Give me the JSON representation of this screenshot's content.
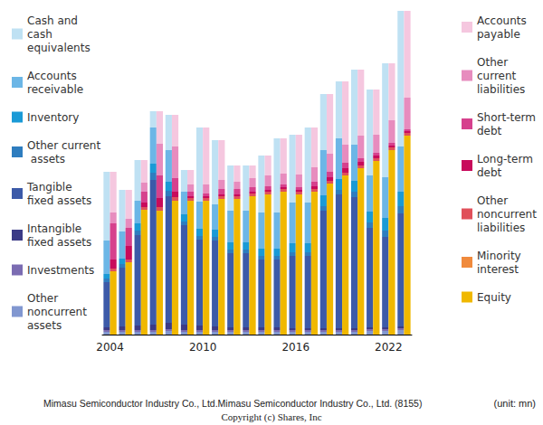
{
  "chart_data": [
    {
      "type": "bar",
      "title": "Mimasu Semiconductor Industry Co., Ltd.Mimasu Semiconductor Industry Co., Ltd. (8155)",
      "annotations": [
        "(unit: mn)",
        "Copyright (c) Shares, Inc"
      ],
      "stacked": true,
      "legend": "left",
      "grid": false,
      "tick_labels": "x",
      "categories": [
        "2004",
        null,
        null,
        null,
        null,
        null,
        "2010",
        null,
        null,
        null,
        null,
        null,
        "2016",
        null,
        null,
        null,
        null,
        null,
        "2022",
        null
      ],
      "ylim": [
        0,
        108000
      ],
      "series": [
        {
          "name": "Cash and cash equivalents",
          "color": "#bfe1f3",
          "values": [
            22800,
            13800,
            13500,
            5400,
            11700,
            7200,
            24600,
            21300,
            15000,
            15000,
            18900,
            24600,
            22500,
            24900,
            18600,
            18900,
            24900,
            28500,
            37800,
            45000
          ]
        },
        {
          "name": "Accounts receivable",
          "color": "#6cb6e6",
          "values": [
            11100,
            9000,
            7500,
            12000,
            10500,
            7500,
            9000,
            8400,
            10500,
            10500,
            12000,
            12000,
            13500,
            13500,
            15000,
            13500,
            12000,
            12000,
            13500,
            15000
          ]
        },
        {
          "name": "Inventory",
          "color": "#1a9ad6",
          "values": [
            1500,
            1800,
            2400,
            3000,
            3000,
            2400,
            2400,
            2400,
            2400,
            2400,
            2400,
            2400,
            3000,
            3000,
            3600,
            3600,
            3600,
            3600,
            4200,
            4800
          ]
        },
        {
          "name": "Other current assets",
          "color": "#2e7dbf",
          "values": [
            1200,
            1200,
            1500,
            2400,
            1800,
            1200,
            1200,
            1200,
            1200,
            1200,
            1200,
            1200,
            1200,
            1200,
            1500,
            1500,
            1800,
            1800,
            2100,
            2400
          ]
        },
        {
          "name": "Tangible fixed assets",
          "color": "#3c5aa8",
          "values": [
            15000,
            19500,
            30000,
            48000,
            42000,
            33000,
            28500,
            28500,
            24600,
            24600,
            22500,
            22500,
            24000,
            24000,
            39000,
            44400,
            43500,
            33000,
            30000,
            37500
          ]
        },
        {
          "name": "Intangible fixed assets",
          "color": "#3b3a86",
          "values": [
            900,
            1200,
            1500,
            1800,
            2100,
            1800,
            1500,
            1200,
            900,
            900,
            900,
            900,
            600,
            600,
            600,
            600,
            600,
            600,
            600,
            600
          ]
        },
        {
          "name": "Investments",
          "color": "#7b6cb2",
          "values": [
            600,
            600,
            600,
            600,
            600,
            600,
            600,
            600,
            600,
            600,
            600,
            600,
            600,
            600,
            600,
            600,
            600,
            600,
            600,
            600
          ]
        },
        {
          "name": "Other noncurrent assets",
          "color": "#8197d0",
          "values": [
            900,
            900,
            900,
            900,
            1200,
            900,
            900,
            900,
            900,
            900,
            900,
            900,
            900,
            900,
            900,
            900,
            900,
            1200,
            1200,
            1500
          ]
        }
      ]
    },
    {
      "type": "bar",
      "stacked": true,
      "legend": "right",
      "grid": false,
      "tick_labels": "x",
      "categories": [
        "2004",
        null,
        null,
        null,
        null,
        null,
        "2010",
        null,
        null,
        null,
        null,
        null,
        "2016",
        null,
        null,
        null,
        null,
        null,
        "2022",
        null
      ],
      "ylim": [
        0,
        108000
      ],
      "series": [
        {
          "name": "Accounts payable",
          "color": "#f5c7df",
          "values": [
            13500,
            9600,
            7500,
            10800,
            10500,
            4800,
            18900,
            13200,
            5400,
            4200,
            6600,
            11700,
            13200,
            13200,
            19800,
            21000,
            21900,
            15000,
            18900,
            28800
          ]
        },
        {
          "name": "Other current liabilities",
          "color": "#e78cbe",
          "values": [
            3600,
            3000,
            3000,
            10500,
            10500,
            2400,
            3000,
            3000,
            2400,
            3000,
            3600,
            3600,
            4200,
            4800,
            6000,
            6000,
            7500,
            6000,
            7500,
            10500
          ]
        },
        {
          "name": "Short-term debt",
          "color": "#d6418d",
          "values": [
            12000,
            6000,
            3600,
            7500,
            4500,
            1500,
            900,
            1800,
            1800,
            1500,
            1200,
            900,
            900,
            1500,
            1800,
            1800,
            1200,
            900,
            900,
            600
          ]
        },
        {
          "name": "Long-term debt",
          "color": "#c80a5b",
          "values": [
            3000,
            4500,
            1500,
            3000,
            1800,
            600,
            600,
            600,
            600,
            600,
            600,
            600,
            600,
            900,
            1200,
            1500,
            1200,
            900,
            600,
            600
          ]
        },
        {
          "name": "Other noncurrent liabilities",
          "color": "#e0505a",
          "values": [
            900,
            900,
            900,
            1200,
            1200,
            900,
            900,
            900,
            900,
            900,
            900,
            900,
            900,
            900,
            900,
            900,
            900,
            900,
            900,
            900
          ]
        },
        {
          "name": "Minority interest",
          "color": "#f08a3c",
          "values": [
            0,
            0,
            0,
            0,
            0,
            0,
            0,
            0,
            0,
            0,
            0,
            0,
            0,
            0,
            0,
            0,
            0,
            0,
            0,
            0
          ]
        },
        {
          "name": "Equity",
          "color": "#f0b800",
          "values": [
            21000,
            24000,
            41400,
            41100,
            44400,
            44400,
            44400,
            45000,
            45000,
            45900,
            46500,
            47400,
            46500,
            47400,
            50100,
            52800,
            55200,
            57600,
            61200,
            66000
          ]
        }
      ]
    }
  ]
}
